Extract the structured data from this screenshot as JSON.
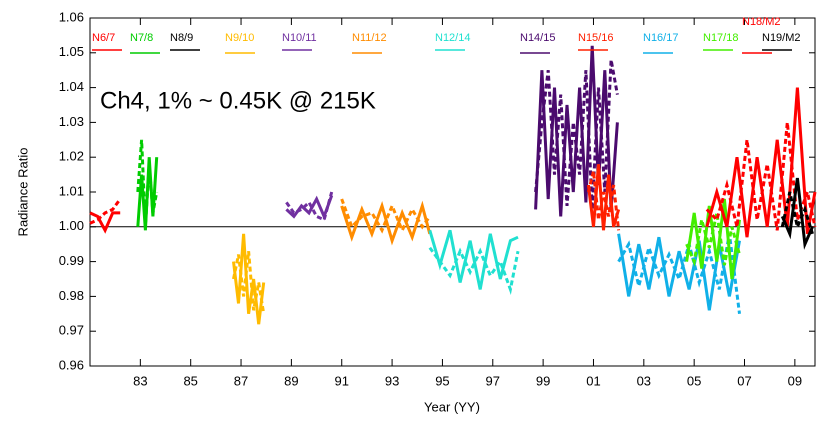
{
  "chart_data": {
    "type": "line",
    "annotation": "Ch4, 1% ~ 0.45K @ 215K",
    "x_label": "Year (YY)",
    "y_label": "Radiance Ratio",
    "xlim": [
      1981,
      2009.8
    ],
    "ylim": [
      0.96,
      1.06
    ],
    "xticks": [
      {
        "value": 1983,
        "label": "83"
      },
      {
        "value": 1985,
        "label": "85"
      },
      {
        "value": 1987,
        "label": "87"
      },
      {
        "value": 1989,
        "label": "89"
      },
      {
        "value": 1991,
        "label": "91"
      },
      {
        "value": 1993,
        "label": "93"
      },
      {
        "value": 1995,
        "label": "95"
      },
      {
        "value": 1997,
        "label": "97"
      },
      {
        "value": 1999,
        "label": "99"
      },
      {
        "value": 2001,
        "label": "01"
      },
      {
        "value": 2003,
        "label": "03"
      },
      {
        "value": 2005,
        "label": "05"
      },
      {
        "value": 2007,
        "label": "07"
      },
      {
        "value": 2009,
        "label": "09"
      }
    ],
    "yticks": [
      0.96,
      0.97,
      0.98,
      0.99,
      {
        "value": 1,
        "label": "1.00"
      },
      1.01,
      1.02,
      1.03,
      1.04,
      1.05,
      1.06
    ],
    "series": [
      {
        "name": "N6/7",
        "color": "#ff0000",
        "x": [
          1981.0,
          1981.3,
          1981.6,
          1981.9,
          1982.2
        ],
        "values": [
          1.004,
          1.003,
          0.999,
          1.004,
          1.004
        ],
        "values_dashed": [
          1.001,
          1.002,
          1.004,
          1.005,
          1.008
        ]
      },
      {
        "name": "N7/8",
        "color": "#00cc00",
        "x": [
          1982.9,
          1983.05,
          1983.2,
          1983.35,
          1983.5,
          1983.65
        ],
        "values": [
          1.0,
          1.015,
          0.999,
          1.02,
          1.003,
          1.02
        ],
        "values_dashed": [
          1.01,
          1.025,
          1.0,
          1.018,
          1.004,
          1.01
        ]
      },
      {
        "name": "N8/9",
        "color": "#000000"
      },
      {
        "name": "N9/10",
        "color": "#ffbb00",
        "x": [
          1986.7,
          1986.9,
          1987.1,
          1987.3,
          1987.5,
          1987.7,
          1987.9
        ],
        "values": [
          0.99,
          0.978,
          0.998,
          0.975,
          0.985,
          0.972,
          0.984
        ],
        "values_dashed": [
          0.985,
          0.992,
          0.98,
          0.993,
          0.976,
          0.984,
          0.975
        ]
      },
      {
        "name": "N10/11",
        "color": "#7030a0",
        "x": [
          1988.8,
          1989.1,
          1989.4,
          1989.7,
          1990.0,
          1990.3,
          1990.6
        ],
        "values": [
          1.005,
          1.003,
          1.006,
          1.004,
          1.008,
          1.003,
          1.009
        ],
        "values_dashed": [
          1.007,
          1.004,
          1.005,
          1.007,
          1.003,
          1.002,
          1.01
        ]
      },
      {
        "name": "N11/12",
        "color": "#ff8c00",
        "x": [
          1991.0,
          1991.4,
          1991.8,
          1992.2,
          1992.6,
          1993.0,
          1993.4,
          1993.8,
          1994.2,
          1994.5
        ],
        "values": [
          1.006,
          0.997,
          1.005,
          0.998,
          1.006,
          0.996,
          1.004,
          0.997,
          1.006,
          0.998
        ],
        "values_dashed": [
          1.008,
          1.0,
          1.003,
          1.004,
          0.999,
          1.006,
          0.999,
          1.005,
          1.0,
          1.003
        ]
      },
      {
        "name": "N12/14",
        "color": "#20e0d0",
        "x": [
          1994.5,
          1994.9,
          1995.3,
          1995.7,
          1996.1,
          1996.5,
          1996.9,
          1997.3,
          1997.7,
          1998.0
        ],
        "values": [
          0.999,
          0.989,
          0.999,
          0.984,
          0.996,
          0.982,
          0.998,
          0.985,
          0.996,
          0.997
        ],
        "values_dashed": [
          0.994,
          0.99,
          0.986,
          0.993,
          0.987,
          0.993,
          0.986,
          0.99,
          0.982,
          0.993
        ]
      },
      {
        "name": "N14/15",
        "color": "#4b0b6e",
        "x": [
          1998.7,
          1998.95,
          1999.2,
          1999.45,
          1999.7,
          1999.95,
          2000.2,
          2000.45,
          2000.7,
          2000.95,
          2001.2,
          2001.45,
          2001.7,
          2001.95
        ],
        "values": [
          1.005,
          1.045,
          1.008,
          1.04,
          1.003,
          1.035,
          1.01,
          1.04,
          1.007,
          1.052,
          1.012,
          1.045,
          1.005,
          1.03
        ],
        "values_dashed": [
          1.01,
          1.03,
          1.045,
          1.015,
          1.038,
          1.006,
          1.03,
          1.015,
          1.045,
          1.005,
          1.04,
          1.01,
          1.048,
          1.038
        ]
      },
      {
        "name": "N15/16",
        "color": "#ff2000",
        "x": [
          2000.8,
          2001.0,
          2001.2,
          2001.4,
          2001.6,
          2001.8,
          2002.0
        ],
        "values": [
          1.012,
          1.0,
          1.018,
          0.999,
          1.015,
          1.0,
          1.005
        ],
        "values_dashed": [
          1.01,
          1.016,
          1.002,
          1.01,
          1.003,
          1.012,
          0.999
        ]
      },
      {
        "name": "N16/17",
        "color": "#10b0e8",
        "x": [
          2002.0,
          2002.4,
          2002.8,
          2003.2,
          2003.6,
          2004.0,
          2004.4,
          2004.8,
          2005.2,
          2005.6,
          2006.0,
          2006.4,
          2006.8
        ],
        "values": [
          0.998,
          0.98,
          0.995,
          0.982,
          0.997,
          0.98,
          0.993,
          0.982,
          0.996,
          0.976,
          0.995,
          0.98,
          0.996
        ],
        "values_dashed": [
          0.99,
          0.995,
          0.983,
          0.994,
          0.986,
          0.992,
          0.985,
          0.995,
          0.984,
          0.993,
          0.982,
          0.998,
          0.975
        ]
      },
      {
        "name": "N17/18",
        "color": "#44ee00",
        "x": [
          2004.7,
          2005.0,
          2005.3,
          2005.6,
          2005.9,
          2006.2,
          2006.5,
          2006.8
        ],
        "values": [
          0.99,
          1.004,
          0.988,
          1.006,
          0.99,
          1.008,
          0.985,
          1.002
        ],
        "values_dashed": [
          0.995,
          0.99,
          1.002,
          0.994,
          1.004,
          0.989,
          1.0,
          0.992
        ]
      },
      {
        "name": "N18/M2",
        "color": "#ff0000",
        "x": [
          2005.5,
          2005.9,
          2006.3,
          2006.7,
          2007.1,
          2007.5,
          2007.9,
          2008.3,
          2008.7,
          2009.1,
          2009.5,
          2009.8
        ],
        "values": [
          1.0,
          1.01,
          1.0,
          1.02,
          0.997,
          1.02,
          1.0,
          1.025,
          1.0,
          1.04,
          0.998,
          1.01
        ],
        "values_dashed": [
          1.005,
          1.002,
          1.012,
          1.0,
          1.025,
          1.002,
          1.018,
          0.999,
          1.03,
          1.002,
          1.01,
          1.0
        ]
      },
      {
        "name": "N19/M2",
        "color": "#000000",
        "x": [
          2008.5,
          2008.8,
          2009.1,
          2009.4,
          2009.7
        ],
        "values": [
          1.003,
          0.998,
          1.014,
          0.995,
          1.0
        ],
        "values_dashed": [
          1.0,
          1.01,
          1.0,
          1.005,
          0.998
        ]
      }
    ]
  }
}
